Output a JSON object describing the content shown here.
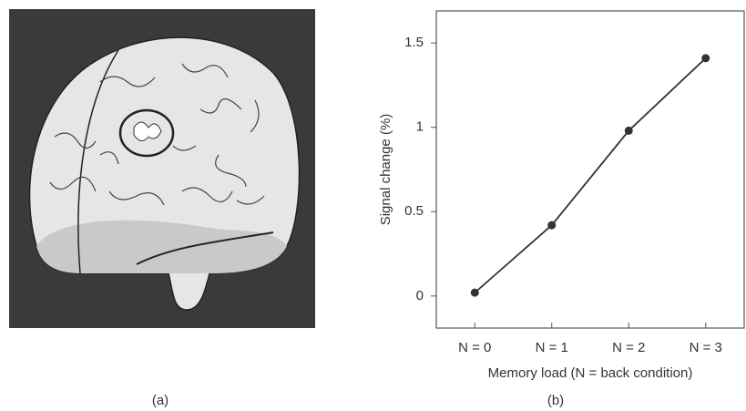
{
  "image_label": "(a)",
  "chart_data": {
    "type": "line",
    "label": "(b)",
    "x_label": "Memory load (N = back condition)",
    "y_label": "Signal change (%)",
    "categories": [
      "N = 0",
      "N = 1",
      "N = 2",
      "N = 3"
    ],
    "values": [
      0.02,
      0.42,
      0.98,
      1.41
    ],
    "color": "#333333",
    "ylim": [
      -0.19,
      1.69
    ],
    "yticks": [
      0,
      0.5,
      1,
      1.5
    ],
    "grid": false
  }
}
